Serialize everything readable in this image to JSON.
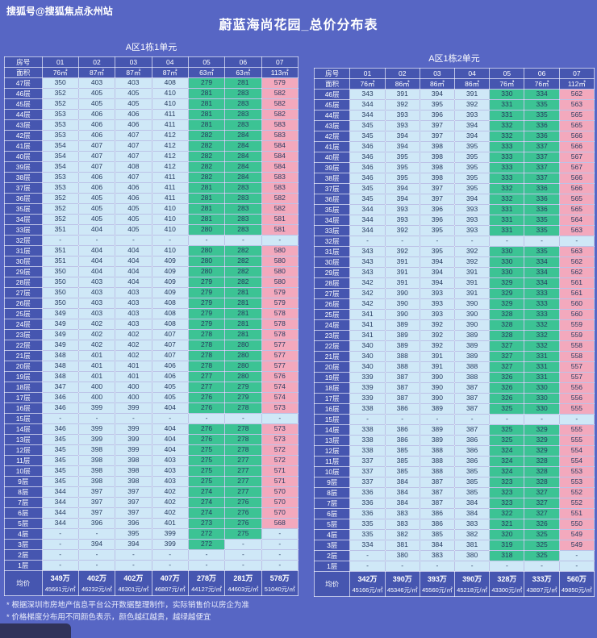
{
  "page": {
    "watermark": "搜狐号@搜狐焦点永州站",
    "title": "蔚蓝海尚花园_总价分布表",
    "notes": [
      "* 根据深圳市房地产信息平台公开数据整理制作，实际销售价以房企为准",
      "* 价格梯度分布用不同颜色表示，颜色越红越贵，越绿越便宜"
    ]
  },
  "colors": {
    "background": "#5766c4",
    "header_blue": "#4656b0",
    "cell_blue": "#cfe8f7",
    "cell_green": "#3cc394",
    "cell_pink": "#f3a9bd",
    "text_dark": "#263a5e"
  },
  "chart_data": {
    "type": "table",
    "subtype": "price-heatmap",
    "unit_note": "values are total price in 万 (10k CNY); color: red=expensive, green=cheap",
    "tables": [
      {
        "title": "A区1栋1单元",
        "corner_top": "房号",
        "corner_bottom": "面积",
        "columns": [
          "01",
          "02",
          "03",
          "04",
          "05",
          "06",
          "07"
        ],
        "areas": [
          "76㎡",
          "87㎡",
          "87㎡",
          "87㎡",
          "63㎡",
          "63㎡",
          "113㎡"
        ],
        "col_classes": [
          "b",
          "b",
          "b",
          "b",
          "g",
          "g",
          "p"
        ],
        "rows": [
          [
            "47层",
            "350",
            "403",
            "403",
            "408",
            "279",
            "281",
            "579"
          ],
          [
            "46层",
            "352",
            "405",
            "405",
            "410",
            "281",
            "283",
            "582"
          ],
          [
            "45层",
            "352",
            "405",
            "405",
            "410",
            "281",
            "283",
            "582"
          ],
          [
            "44层",
            "353",
            "406",
            "406",
            "411",
            "281",
            "283",
            "582"
          ],
          [
            "43层",
            "353",
            "406",
            "406",
            "411",
            "281",
            "283",
            "583"
          ],
          [
            "42层",
            "353",
            "406",
            "407",
            "412",
            "282",
            "284",
            "583"
          ],
          [
            "41层",
            "354",
            "407",
            "407",
            "412",
            "282",
            "284",
            "584"
          ],
          [
            "40层",
            "354",
            "407",
            "407",
            "412",
            "282",
            "284",
            "584"
          ],
          [
            "39层",
            "354",
            "407",
            "408",
            "412",
            "282",
            "284",
            "584"
          ],
          [
            "38层",
            "353",
            "406",
            "407",
            "411",
            "282",
            "284",
            "583"
          ],
          [
            "37层",
            "353",
            "406",
            "406",
            "411",
            "281",
            "283",
            "583"
          ],
          [
            "36层",
            "352",
            "405",
            "406",
            "411",
            "281",
            "283",
            "582"
          ],
          [
            "35层",
            "352",
            "405",
            "405",
            "410",
            "281",
            "283",
            "582"
          ],
          [
            "34层",
            "352",
            "405",
            "405",
            "410",
            "281",
            "283",
            "581"
          ],
          [
            "33层",
            "351",
            "404",
            "405",
            "410",
            "280",
            "283",
            "581"
          ],
          [
            "32层",
            "-",
            "-",
            "-",
            "-",
            "-",
            "-",
            "-"
          ],
          [
            "31层",
            "351",
            "404",
            "404",
            "410",
            "280",
            "282",
            "580"
          ],
          [
            "30层",
            "351",
            "404",
            "404",
            "409",
            "280",
            "282",
            "580"
          ],
          [
            "29层",
            "350",
            "404",
            "404",
            "409",
            "280",
            "282",
            "580"
          ],
          [
            "28层",
            "350",
            "403",
            "404",
            "409",
            "279",
            "282",
            "580"
          ],
          [
            "27层",
            "350",
            "403",
            "403",
            "409",
            "279",
            "281",
            "579"
          ],
          [
            "26层",
            "350",
            "403",
            "403",
            "408",
            "279",
            "281",
            "579"
          ],
          [
            "25层",
            "349",
            "403",
            "403",
            "408",
            "279",
            "281",
            "578"
          ],
          [
            "24层",
            "349",
            "402",
            "403",
            "408",
            "279",
            "281",
            "578"
          ],
          [
            "23层",
            "349",
            "402",
            "402",
            "407",
            "278",
            "281",
            "578"
          ],
          [
            "22层",
            "349",
            "402",
            "402",
            "407",
            "278",
            "280",
            "577"
          ],
          [
            "21层",
            "348",
            "401",
            "402",
            "407",
            "278",
            "280",
            "577"
          ],
          [
            "20层",
            "348",
            "401",
            "401",
            "406",
            "278",
            "280",
            "577"
          ],
          [
            "19层",
            "348",
            "401",
            "401",
            "406",
            "277",
            "280",
            "576"
          ],
          [
            "18层",
            "347",
            "400",
            "400",
            "405",
            "277",
            "279",
            "574"
          ],
          [
            "17层",
            "346",
            "400",
            "400",
            "405",
            "276",
            "279",
            "574"
          ],
          [
            "16层",
            "346",
            "399",
            "399",
            "404",
            "276",
            "278",
            "573"
          ],
          [
            "15层",
            "-",
            "-",
            "-",
            "-",
            "-",
            "-",
            "-"
          ],
          [
            "14层",
            "346",
            "399",
            "399",
            "404",
            "276",
            "278",
            "573"
          ],
          [
            "13层",
            "345",
            "399",
            "399",
            "404",
            "276",
            "278",
            "573"
          ],
          [
            "12层",
            "345",
            "398",
            "399",
            "404",
            "275",
            "278",
            "572"
          ],
          [
            "11层",
            "345",
            "398",
            "398",
            "403",
            "275",
            "277",
            "572"
          ],
          [
            "10层",
            "345",
            "398",
            "398",
            "403",
            "275",
            "277",
            "571"
          ],
          [
            "9层",
            "345",
            "398",
            "398",
            "403",
            "275",
            "277",
            "571"
          ],
          [
            "8层",
            "344",
            "397",
            "397",
            "402",
            "274",
            "277",
            "570"
          ],
          [
            "7层",
            "344",
            "397",
            "397",
            "402",
            "274",
            "276",
            "570"
          ],
          [
            "6层",
            "344",
            "397",
            "397",
            "402",
            "274",
            "276",
            "570"
          ],
          [
            "5层",
            "344",
            "396",
            "396",
            "401",
            "273",
            "276",
            "568"
          ],
          [
            "4层",
            "-",
            "-",
            "395",
            "399",
            "272",
            "275",
            "-"
          ],
          [
            "3层",
            "-",
            "394",
            "394",
            "399",
            "272",
            "-",
            "-"
          ],
          [
            "2层",
            "-",
            "-",
            "-",
            "-",
            "-",
            "-",
            "-"
          ],
          [
            "1层",
            "-",
            "-",
            "-",
            "-",
            "-",
            "-",
            "-"
          ]
        ],
        "avg_label": "均价",
        "avg_prices": [
          "349万",
          "402万",
          "402万",
          "407万",
          "278万",
          "281万",
          "578万"
        ],
        "avg_unit_prices": [
          "45661元/㎡",
          "46232元/㎡",
          "46301元/㎡",
          "46807元/㎡",
          "44127元/㎡",
          "44603元/㎡",
          "51040元/㎡"
        ]
      },
      {
        "title": "A区1栋2单元",
        "corner_top": "房号",
        "corner_bottom": "面积",
        "columns": [
          "01",
          "02",
          "03",
          "04",
          "05",
          "06",
          "07"
        ],
        "areas": [
          "76㎡",
          "86㎡",
          "86㎡",
          "86㎡",
          "76㎡",
          "76㎡",
          "112㎡"
        ],
        "col_classes": [
          "b",
          "b",
          "b",
          "b",
          "g",
          "g",
          "p"
        ],
        "rows": [
          [
            "46层",
            "343",
            "391",
            "394",
            "391",
            "330",
            "334",
            "562"
          ],
          [
            "45层",
            "344",
            "392",
            "395",
            "392",
            "331",
            "335",
            "563"
          ],
          [
            "44层",
            "344",
            "393",
            "396",
            "393",
            "331",
            "335",
            "565"
          ],
          [
            "43层",
            "345",
            "393",
            "397",
            "394",
            "332",
            "336",
            "565"
          ],
          [
            "42层",
            "345",
            "394",
            "397",
            "394",
            "332",
            "336",
            "566"
          ],
          [
            "41层",
            "346",
            "394",
            "398",
            "395",
            "333",
            "337",
            "566"
          ],
          [
            "40层",
            "346",
            "395",
            "398",
            "395",
            "333",
            "337",
            "567"
          ],
          [
            "39层",
            "346",
            "395",
            "398",
            "395",
            "333",
            "337",
            "567"
          ],
          [
            "38层",
            "346",
            "395",
            "398",
            "395",
            "333",
            "337",
            "566"
          ],
          [
            "37层",
            "345",
            "394",
            "397",
            "395",
            "332",
            "336",
            "566"
          ],
          [
            "36层",
            "345",
            "394",
            "397",
            "394",
            "332",
            "336",
            "565"
          ],
          [
            "35层",
            "344",
            "393",
            "396",
            "393",
            "331",
            "336",
            "565"
          ],
          [
            "34层",
            "344",
            "393",
            "396",
            "393",
            "331",
            "335",
            "564"
          ],
          [
            "33层",
            "344",
            "392",
            "395",
            "393",
            "331",
            "335",
            "563"
          ],
          [
            "32层",
            "-",
            "-",
            "-",
            "-",
            "-",
            "-",
            "-"
          ],
          [
            "31层",
            "343",
            "392",
            "395",
            "392",
            "330",
            "335",
            "563"
          ],
          [
            "30层",
            "343",
            "391",
            "394",
            "392",
            "330",
            "334",
            "562"
          ],
          [
            "29层",
            "343",
            "391",
            "394",
            "391",
            "330",
            "334",
            "562"
          ],
          [
            "28层",
            "342",
            "391",
            "394",
            "391",
            "329",
            "334",
            "561"
          ],
          [
            "27层",
            "342",
            "390",
            "393",
            "391",
            "329",
            "333",
            "561"
          ],
          [
            "26层",
            "342",
            "390",
            "393",
            "390",
            "329",
            "333",
            "560"
          ],
          [
            "25层",
            "341",
            "390",
            "393",
            "390",
            "328",
            "333",
            "560"
          ],
          [
            "24层",
            "341",
            "389",
            "392",
            "390",
            "328",
            "332",
            "559"
          ],
          [
            "23层",
            "341",
            "389",
            "392",
            "389",
            "328",
            "332",
            "559"
          ],
          [
            "22层",
            "340",
            "389",
            "392",
            "389",
            "327",
            "332",
            "558"
          ],
          [
            "21层",
            "340",
            "388",
            "391",
            "389",
            "327",
            "331",
            "558"
          ],
          [
            "20层",
            "340",
            "388",
            "391",
            "388",
            "327",
            "331",
            "557"
          ],
          [
            "19层",
            "339",
            "387",
            "390",
            "388",
            "326",
            "331",
            "557"
          ],
          [
            "18层",
            "339",
            "387",
            "390",
            "387",
            "326",
            "330",
            "556"
          ],
          [
            "17层",
            "339",
            "387",
            "390",
            "387",
            "326",
            "330",
            "556"
          ],
          [
            "16层",
            "338",
            "386",
            "389",
            "387",
            "325",
            "330",
            "555"
          ],
          [
            "15层",
            "-",
            "-",
            "-",
            "-",
            "-",
            "-",
            "-"
          ],
          [
            "14层",
            "338",
            "386",
            "389",
            "387",
            "325",
            "329",
            "555"
          ],
          [
            "13层",
            "338",
            "386",
            "389",
            "386",
            "325",
            "329",
            "555"
          ],
          [
            "12层",
            "338",
            "385",
            "388",
            "386",
            "324",
            "329",
            "554"
          ],
          [
            "11层",
            "337",
            "385",
            "388",
            "386",
            "324",
            "328",
            "554"
          ],
          [
            "10层",
            "337",
            "385",
            "388",
            "385",
            "324",
            "328",
            "553"
          ],
          [
            "9层",
            "337",
            "384",
            "387",
            "385",
            "323",
            "328",
            "553"
          ],
          [
            "8层",
            "336",
            "384",
            "387",
            "385",
            "323",
            "327",
            "552"
          ],
          [
            "7层",
            "336",
            "384",
            "387",
            "384",
            "323",
            "327",
            "552"
          ],
          [
            "6层",
            "336",
            "383",
            "386",
            "384",
            "322",
            "327",
            "551"
          ],
          [
            "5层",
            "335",
            "383",
            "386",
            "383",
            "321",
            "326",
            "550"
          ],
          [
            "4层",
            "335",
            "382",
            "385",
            "382",
            "320",
            "325",
            "549"
          ],
          [
            "3层",
            "334",
            "381",
            "384",
            "381",
            "319",
            "325",
            "549"
          ],
          [
            "2层",
            "-",
            "380",
            "383",
            "380",
            "318",
            "325",
            "-"
          ],
          [
            "1层",
            "-",
            "-",
            "-",
            "-",
            "-",
            "-",
            "-"
          ]
        ],
        "avg_label": "均价",
        "avg_prices": [
          "342万",
          "390万",
          "393万",
          "390万",
          "328万",
          "333万",
          "560万"
        ],
        "avg_unit_prices": [
          "45166元/㎡",
          "45346元/㎡",
          "45560元/㎡",
          "45218元/㎡",
          "43300元/㎡",
          "43897元/㎡",
          "49850元/㎡"
        ]
      }
    ]
  }
}
